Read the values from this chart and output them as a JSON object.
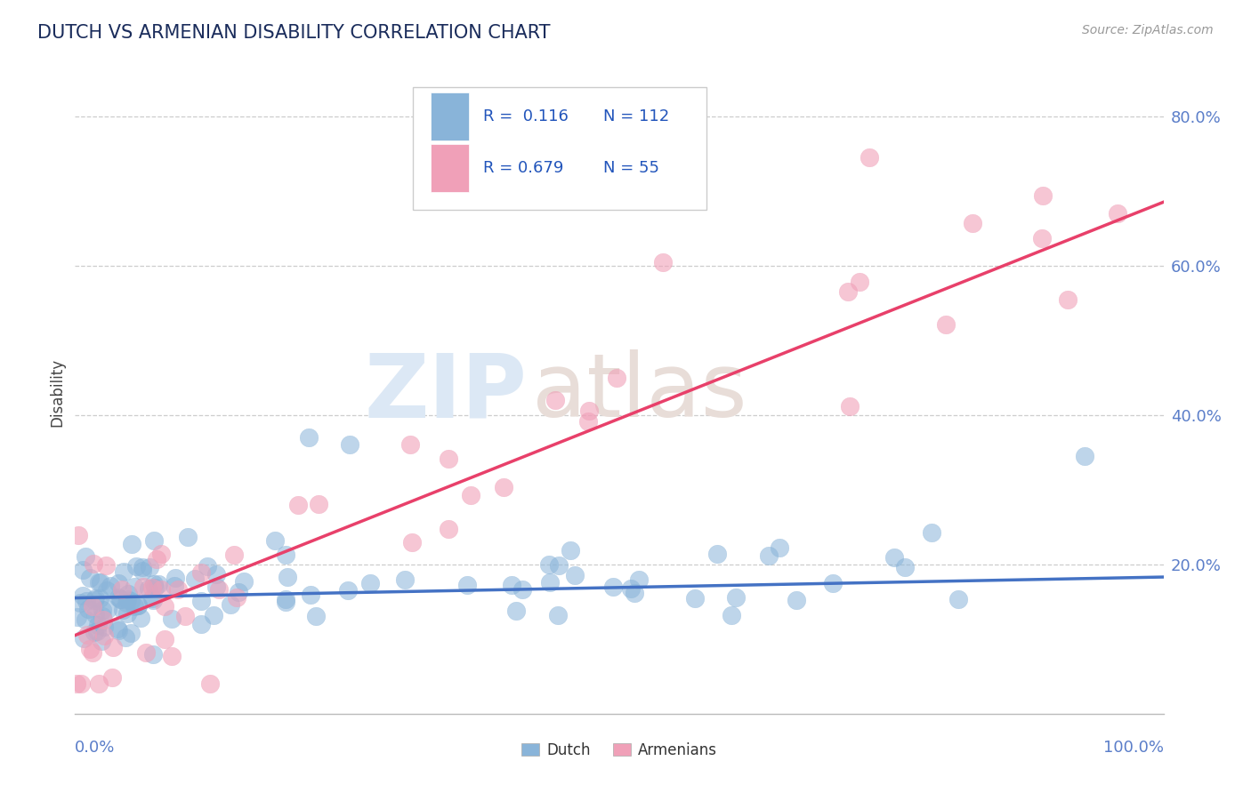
{
  "title": "DUTCH VS ARMENIAN DISABILITY CORRELATION CHART",
  "source": "Source: ZipAtlas.com",
  "ylabel": "Disability",
  "ytick_labels": [
    "20.0%",
    "40.0%",
    "60.0%",
    "80.0%"
  ],
  "ytick_values": [
    0.2,
    0.4,
    0.6,
    0.8
  ],
  "legend_r1": "R =  0.116",
  "legend_n1": "N = 112",
  "legend_r2": "R = 0.679",
  "legend_n2": "N = 55",
  "dutch_color": "#89b4d9",
  "armenian_color": "#f0a0b8",
  "dutch_trend_color": "#4472c4",
  "armenian_trend_color": "#e8406a",
  "title_color": "#1a2c5b",
  "axis_color": "#5b7ec9",
  "grid_color": "#c8c8c8",
  "legend_text_color": "#2255bb",
  "dutch_slope": 0.028,
  "dutch_intercept": 0.155,
  "armenian_slope": 0.58,
  "armenian_intercept": 0.105
}
